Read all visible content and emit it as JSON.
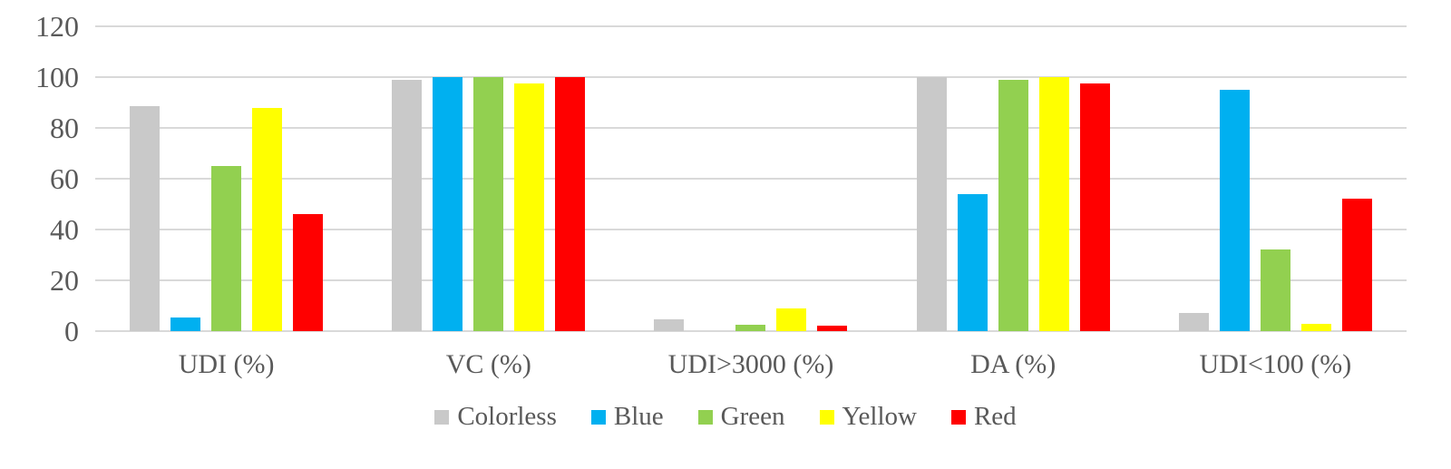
{
  "chart_data": {
    "type": "bar",
    "title": "",
    "xlabel": "",
    "ylabel": "",
    "categories": [
      "UDI (%)",
      "VC (%)",
      "UDI>3000 (%)",
      "DA (%)",
      "UDI<100 (%)"
    ],
    "series": [
      {
        "name": "Colorless",
        "color": "#c9c9c9",
        "values": [
          88.5,
          99,
          4.5,
          100,
          7
        ]
      },
      {
        "name": "Blue",
        "color": "#00b0f0",
        "values": [
          5.5,
          100,
          0,
          54,
          95
        ]
      },
      {
        "name": "Green",
        "color": "#92d050",
        "values": [
          65,
          100,
          2.5,
          99,
          32
        ]
      },
      {
        "name": "Yellow",
        "color": "#ffff00",
        "values": [
          88,
          97.5,
          9,
          100,
          3
        ]
      },
      {
        "name": "Red",
        "color": "#ff0000",
        "values": [
          46,
          100,
          2,
          97.5,
          52
        ]
      }
    ],
    "yticks": [
      0,
      20,
      40,
      60,
      80,
      100,
      120
    ],
    "ylim": [
      0,
      120
    ],
    "grid": true,
    "gridline_color": "#d9d9d9",
    "text_color": "#595959",
    "legend_position": "bottom"
  }
}
